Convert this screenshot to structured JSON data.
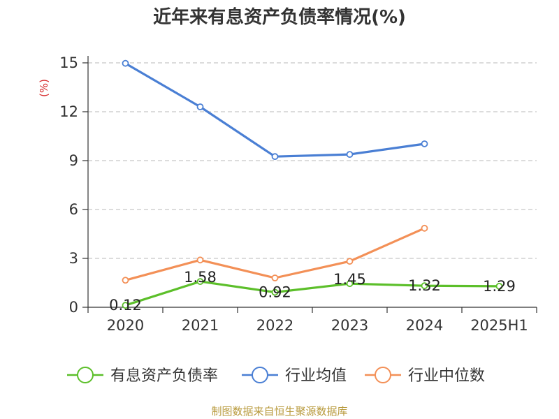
{
  "title": "近年来有息资产负债率情况(%)",
  "source": "制图数据来自恒生聚源数据库",
  "chart_data": {
    "type": "line",
    "title": "近年来有息资产负债率情况(%)",
    "x": [
      "2020",
      "2021",
      "2022",
      "2023",
      "2024",
      "2025H1"
    ],
    "yunit": "(%)",
    "ylim": [
      0,
      15
    ],
    "yticks": [
      0,
      3,
      6,
      9,
      12,
      15
    ],
    "grid": true,
    "legend_position": "bottom",
    "series": [
      {
        "name": "有息资产负债率",
        "color": "#5cbf2a",
        "values": [
          0.12,
          1.58,
          0.92,
          1.45,
          1.32,
          1.29
        ],
        "labels": [
          "0.12",
          "1.58",
          "0.92",
          "1.45",
          "1.32",
          "1.29"
        ]
      },
      {
        "name": "行业均值",
        "color": "#4a7fd4",
        "values": [
          14.97,
          12.3,
          9.25,
          9.38,
          10.03,
          null
        ]
      },
      {
        "name": "行业中位数",
        "color": "#f39057",
        "values": [
          1.66,
          2.9,
          1.8,
          2.82,
          4.85,
          null
        ]
      }
    ]
  }
}
